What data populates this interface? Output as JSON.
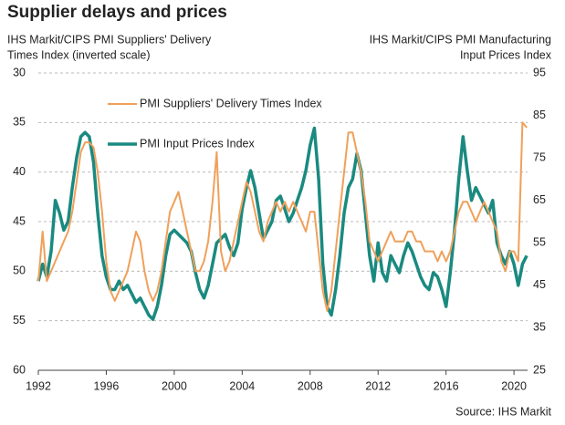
{
  "chart_data": {
    "type": "line",
    "title": "Supplier delays and prices",
    "ylabel": [
      "IHS Markit/CIPS PMI Suppliers' Delivery",
      "Times Index (inverted scale)"
    ],
    "y2label": [
      "IHS Markit/CIPS PMI Manufacturing",
      "Input Prices Index"
    ],
    "source": "Source: IHS Markit",
    "xlim": [
      1992,
      2020.8
    ],
    "xticks": [
      1992,
      1996,
      2000,
      2004,
      2008,
      2012,
      2016,
      2020
    ],
    "ylim": [
      60,
      30
    ],
    "yticks": [
      30,
      35,
      40,
      45,
      50,
      55,
      60
    ],
    "y2lim": [
      25,
      95
    ],
    "y2ticks": [
      25,
      35,
      45,
      55,
      65,
      75,
      85,
      95
    ],
    "grid": true,
    "x": [
      1992,
      1992.25,
      1992.5,
      1992.75,
      1993,
      1993.25,
      1993.5,
      1993.75,
      1994,
      1994.25,
      1994.5,
      1994.75,
      1995,
      1995.25,
      1995.5,
      1995.75,
      1996,
      1996.25,
      1996.5,
      1996.75,
      1997,
      1997.25,
      1997.5,
      1997.75,
      1998,
      1998.25,
      1998.5,
      1998.75,
      1999,
      1999.25,
      1999.5,
      1999.75,
      2000,
      2000.25,
      2000.5,
      2000.75,
      2001,
      2001.25,
      2001.5,
      2001.75,
      2002,
      2002.25,
      2002.5,
      2002.75,
      2003,
      2003.25,
      2003.5,
      2003.75,
      2004,
      2004.25,
      2004.5,
      2004.75,
      2005,
      2005.25,
      2005.5,
      2005.75,
      2006,
      2006.25,
      2006.5,
      2006.75,
      2007,
      2007.25,
      2007.5,
      2007.75,
      2008,
      2008.25,
      2008.5,
      2008.75,
      2009,
      2009.25,
      2009.5,
      2009.75,
      2010,
      2010.25,
      2010.5,
      2010.75,
      2011,
      2011.25,
      2011.5,
      2011.75,
      2012,
      2012.25,
      2012.5,
      2012.75,
      2013,
      2013.25,
      2013.5,
      2013.75,
      2014,
      2014.25,
      2014.5,
      2014.75,
      2015,
      2015.25,
      2015.5,
      2015.75,
      2016,
      2016.25,
      2016.5,
      2016.75,
      2017,
      2017.25,
      2017.5,
      2017.75,
      2018,
      2018.25,
      2018.5,
      2018.75,
      2019,
      2019.25,
      2019.5,
      2019.75,
      2020,
      2020.25,
      2020.5,
      2020.75
    ],
    "series": [
      {
        "name": "PMI Suppliers' Delivery Times Index",
        "color": "#f0a05a",
        "values": [
          51,
          46,
          51,
          50,
          49,
          48,
          47,
          46,
          44,
          41,
          38,
          37,
          37,
          37.5,
          40,
          44,
          49,
          52,
          53,
          52,
          51,
          50,
          48,
          46,
          47,
          50,
          52,
          53,
          52,
          50,
          47,
          44,
          43,
          42,
          44,
          46,
          48,
          50,
          50,
          49,
          47,
          43,
          38,
          48,
          50,
          49,
          47,
          45,
          43,
          41,
          42,
          44,
          46,
          47,
          45,
          44,
          43,
          44,
          43,
          44,
          43,
          44,
          45,
          46,
          44,
          44,
          48,
          52,
          54,
          52,
          48,
          44,
          40,
          36,
          36,
          38,
          40,
          43,
          47,
          48,
          49,
          48,
          47,
          46,
          47,
          47,
          47,
          46,
          46,
          47,
          47,
          48,
          48,
          48,
          49,
          48,
          49,
          48,
          46,
          44,
          43,
          43,
          44,
          45,
          44,
          43,
          44,
          45,
          46,
          49,
          50,
          48,
          48,
          49,
          35,
          35.5
        ]
      },
      {
        "name": "PMI Input Prices Index",
        "color": "#1a8a80",
        "axis": "y2",
        "values": [
          46,
          50,
          47,
          53,
          65,
          62,
          58,
          60,
          68,
          75,
          80,
          81,
          80,
          74,
          62,
          52,
          47,
          44,
          44,
          46,
          44,
          45,
          43,
          41,
          42,
          40,
          38,
          37,
          40,
          45,
          52,
          57,
          58,
          57,
          56,
          55,
          53,
          48,
          44,
          42,
          45,
          50,
          55,
          56,
          57,
          54,
          52,
          55,
          63,
          68,
          72,
          68,
          62,
          56,
          58,
          60,
          65,
          66,
          63,
          60,
          62,
          65,
          68,
          72,
          78,
          82,
          70,
          50,
          40,
          38,
          44,
          52,
          62,
          68,
          70,
          76,
          72,
          62,
          52,
          46,
          55,
          48,
          46,
          52,
          50,
          48,
          52,
          55,
          53,
          50,
          47,
          45,
          44,
          48,
          47,
          44,
          40,
          48,
          58,
          70,
          80,
          72,
          65,
          68,
          66,
          64,
          62,
          65,
          55,
          52,
          50,
          53,
          50,
          45,
          50,
          52
        ]
      }
    ]
  }
}
